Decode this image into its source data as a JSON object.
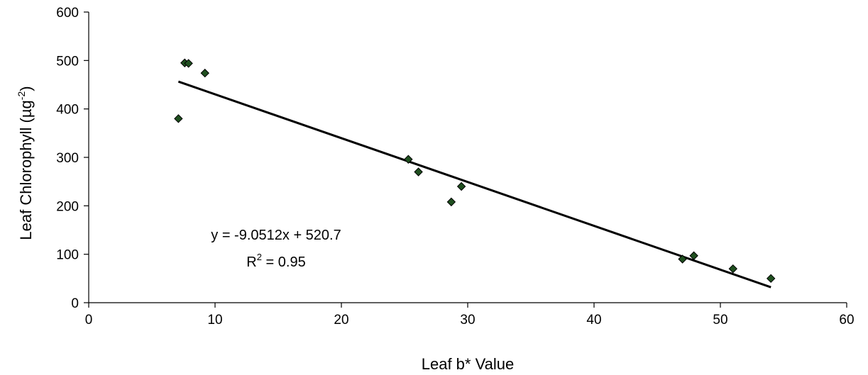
{
  "chart_data": {
    "type": "scatter",
    "title": "",
    "xlabel": "Leaf b* Value",
    "ylabel_main": "Leaf Chlorophyll (µg",
    "ylabel_sup": "-2",
    "ylabel_end": ")",
    "xlim": [
      0,
      60
    ],
    "ylim": [
      0,
      600
    ],
    "x_ticks": [
      0,
      10,
      20,
      30,
      40,
      50,
      60
    ],
    "y_ticks": [
      0,
      100,
      200,
      300,
      400,
      500,
      600
    ],
    "grid": false,
    "legend": "none",
    "series": [
      {
        "points": [
          {
            "x": 7.1,
            "y": 380
          },
          {
            "x": 7.6,
            "y": 495
          },
          {
            "x": 7.9,
            "y": 494
          },
          {
            "x": 9.2,
            "y": 474
          },
          {
            "x": 25.3,
            "y": 296
          },
          {
            "x": 26.1,
            "y": 270
          },
          {
            "x": 28.7,
            "y": 208
          },
          {
            "x": 29.5,
            "y": 240
          },
          {
            "x": 47.0,
            "y": 90
          },
          {
            "x": 47.9,
            "y": 97
          },
          {
            "x": 51.0,
            "y": 70
          },
          {
            "x": 54.0,
            "y": 50
          }
        ]
      }
    ],
    "trendline": {
      "slope": -9.0512,
      "intercept": 520.7,
      "x_start": 7.1,
      "x_end": 54.0
    },
    "equation_text": "y = -9.0512x + 520.7",
    "r2_prefix": "R",
    "r2_sup": "2",
    "r2_value": " = 0.95",
    "colors": {
      "marker_fill": "#1f4f1f",
      "marker_stroke": "#000000",
      "trendline": "#000000",
      "axis": "#000000"
    }
  }
}
